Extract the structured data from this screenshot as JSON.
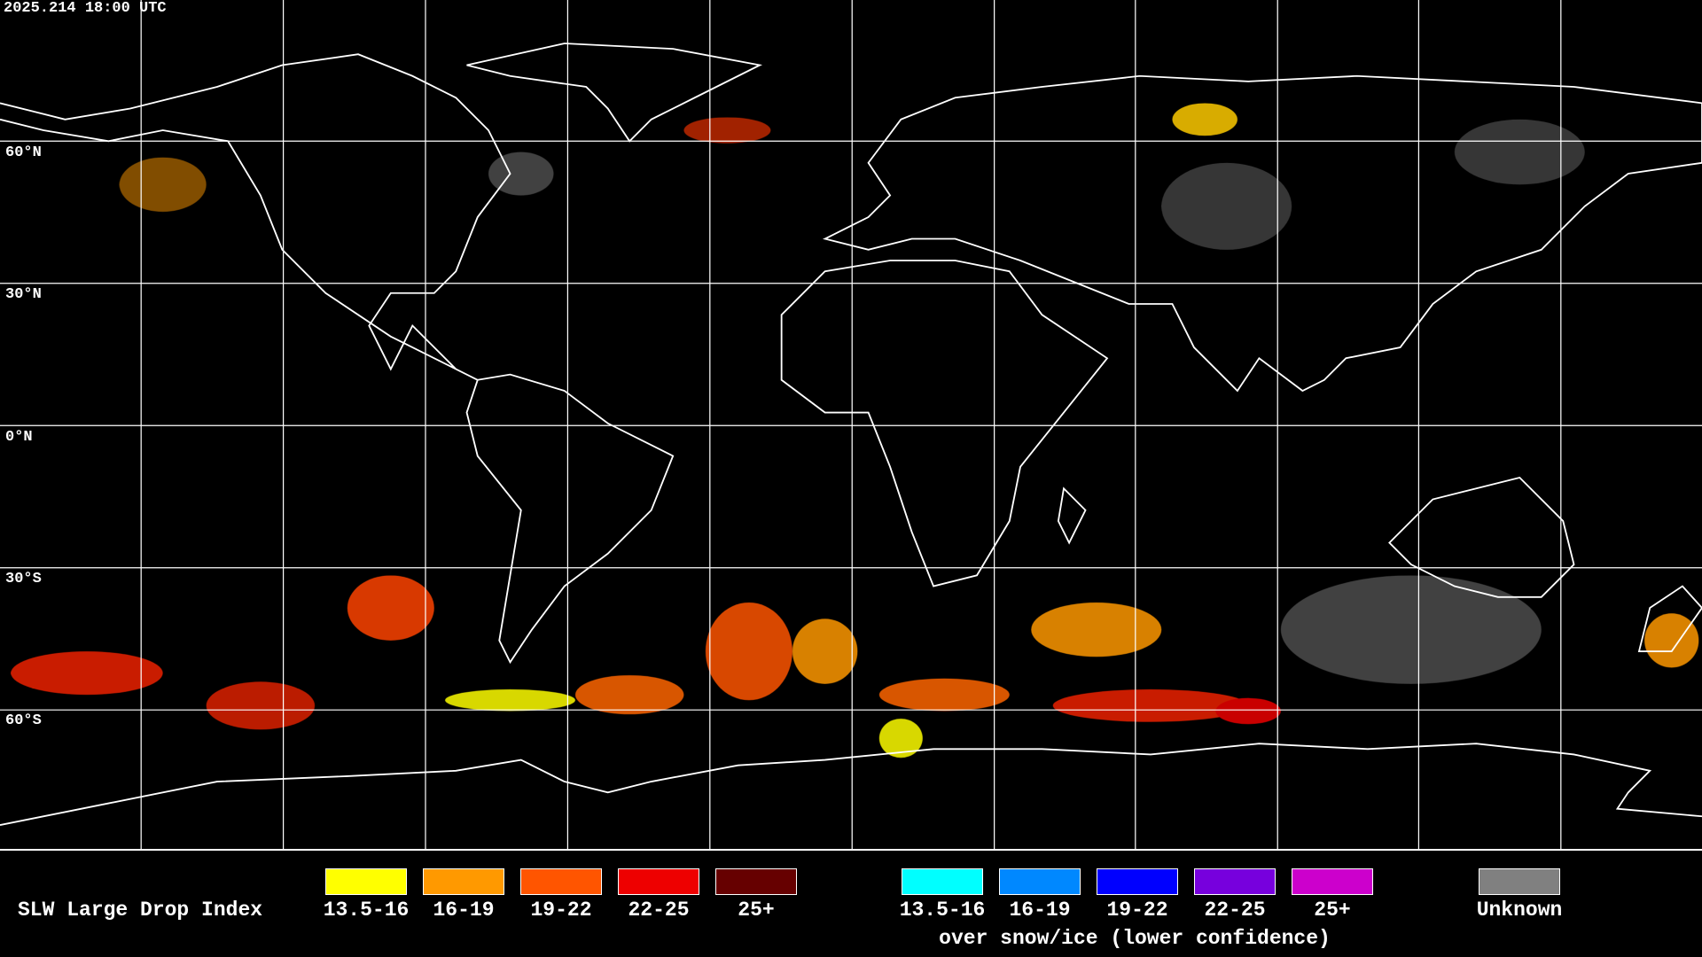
{
  "header": {
    "timestamp": "2025.214 18:00 UTC"
  },
  "lat_labels": [
    "60°N",
    "30°N",
    "0°N",
    "30°S",
    "60°S"
  ],
  "legend": {
    "title": "SLW Large Drop Index",
    "items": [
      {
        "label": "13.5-16",
        "color": "#ffff00"
      },
      {
        "label": "16-19",
        "color": "#ff9900"
      },
      {
        "label": "19-22",
        "color": "#ff5500"
      },
      {
        "label": "22-25",
        "color": "#ee0000"
      },
      {
        "label": "25+",
        "color": "#660000"
      }
    ],
    "snow_items": [
      {
        "label": "13.5-16",
        "color": "#00ffff"
      },
      {
        "label": "16-19",
        "color": "#0088ff"
      },
      {
        "label": "19-22",
        "color": "#0000ff"
      },
      {
        "label": "22-25",
        "color": "#7700dd"
      },
      {
        "label": "25+",
        "color": "#cc00cc"
      }
    ],
    "snow_caption": "over snow/ice (lower confidence)",
    "unknown": {
      "label": "Unknown",
      "color": "#808080"
    }
  }
}
